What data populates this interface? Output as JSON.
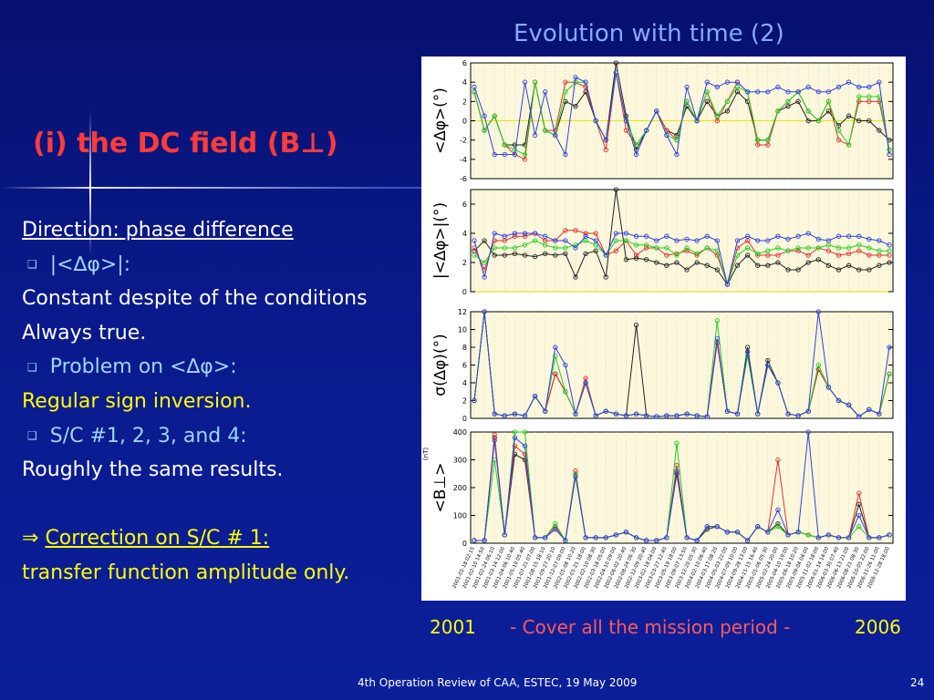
{
  "slide": {
    "title": "Evolution with time (2)",
    "section_title": "(i) the DC field (B⊥)",
    "footer": "4th Operation Review of CAA, ESTEC, 19 May 2009",
    "page_number": "24"
  },
  "body": {
    "heading": "Direction: phase difference",
    "bullet_1": "|<∆φ>|:",
    "line_1a": "Constant  despite of the conditions",
    "line_1b": "Always true.",
    "bullet_2": "Problem on <∆φ>:",
    "line_2": "Regular sign inversion.",
    "bullet_3": "S/C #1, 2, 3, and 4:",
    "line_3": "Roughly the same results.",
    "arrow": "⇒",
    "conclusion": "Correction on S/C # 1:",
    "line_4": "transfer function amplitude only."
  },
  "timeline": {
    "start_year": "2001",
    "caption": "- Cover all the mission period -",
    "end_year": "2006"
  },
  "colors": {
    "background": "#0a1a8c",
    "title": "#88aaff",
    "section_title": "#ff3b3b",
    "highlight": "#ffff00",
    "text": "#ffffff",
    "bullet_text": "#9fd4ff",
    "plot_bg": "#fdf8dc",
    "reference_line": "#e8e030"
  },
  "chart_data": {
    "type": "line",
    "x": [
      "2001-01-18 02:15",
      "2001-02-10 14:50",
      "2001-02-24 06:10",
      "2001-03-14 12:00",
      "2001-04-06 10:40",
      "2001-05-19 05:40",
      "2001-07-21 07:00",
      "2001-08-15 18:10",
      "2001-09-27 20:10",
      "2001-12-07 09:00",
      "2002-01-08 10:20",
      "2002-01-21 18:00",
      "2002-02-10 08:30",
      "2002-03-18 05:00",
      "2002-04-10 09:00",
      "2002-06-02 20:40",
      "2002-08-24 06:30",
      "2002-12-09 20:40",
      "2003-02-18 04:00",
      "2003-03-27 12:40",
      "2003-05-19 18:00",
      "2003-09-07 13:50",
      "2003-12-20 05:30",
      "2004-02-10 06:40",
      "2004-03-17 08:20",
      "2004-05-03 22:00",
      "2004-07-09 10:00",
      "2004-09-28 13:00",
      "2004-11-15 16:40",
      "2005-01-06 05:30",
      "2005-02-24 20:00",
      "2005-04-10 19:00",
      "2005-06-18 10:20",
      "2005-09-04 04:00",
      "2005-11-02 18:00",
      "2006-01-14 14:00",
      "2006-03-30 07:40",
      "2006-06-13 21:00",
      "2006-08-21 08:30",
      "2006-10-05 22:00",
      "2006-11-26 11:00",
      "2006-12-28 18:00"
    ],
    "series_colors": [
      "#202020",
      "#e03030",
      "#20d020",
      "#3040e0"
    ],
    "panels": [
      {
        "ylabel": "<∆φ>(°)",
        "ylim": [
          -6,
          6
        ],
        "yticks": [
          -6,
          -4,
          -2,
          0,
          2,
          4,
          6
        ],
        "reference": 0,
        "series": [
          {
            "values": [
              3,
              -1,
              0.5,
              -2.5,
              -2.5,
              -2.5,
              4,
              -1,
              -1.5,
              2,
              1.5,
              3,
              0,
              -2,
              6,
              0.5,
              -3,
              -1,
              1,
              -1,
              -1.5,
              1.5,
              0,
              2,
              0.5,
              1,
              3,
              2,
              -2,
              -2,
              1,
              1.5,
              2,
              0,
              0,
              1,
              -0.5,
              0.5,
              0,
              0,
              -1,
              -2
            ]
          },
          {
            "values": [
              3,
              -1,
              0.5,
              -2.5,
              -3.5,
              -4,
              4,
              -1,
              -1,
              4,
              4,
              3.5,
              0,
              -3,
              5,
              -1,
              -2.5,
              -1,
              1,
              -1,
              -2,
              2,
              0,
              3,
              0,
              2,
              4,
              3,
              -2.5,
              -2.5,
              1,
              2,
              3,
              1,
              0,
              2,
              -2,
              -2.5,
              2,
              2,
              2,
              -3
            ]
          },
          {
            "values": [
              3,
              -1,
              0.5,
              -2.5,
              -3,
              -3.5,
              4,
              -1,
              -1.5,
              3,
              4,
              4,
              0,
              -2,
              5,
              0,
              -2.5,
              -1,
              1,
              -1.5,
              -2,
              2,
              0,
              3,
              0.5,
              2,
              3.5,
              3,
              -2,
              -2,
              1,
              2,
              3,
              1,
              0,
              2,
              -1,
              -2.5,
              2.5,
              2.5,
              2.5,
              -3
            ]
          },
          {
            "values": [
              3.5,
              0.5,
              -3.5,
              -3.5,
              -3.5,
              4,
              -1.5,
              3,
              -1.5,
              -3.5,
              4.5,
              4,
              0,
              -2,
              5,
              0,
              -3.5,
              -1,
              1,
              -1.5,
              -3.5,
              3.5,
              0,
              4,
              3.5,
              4,
              4,
              3,
              3,
              3,
              3.5,
              3,
              3,
              3.5,
              3,
              3,
              3.5,
              4,
              3.5,
              3.5,
              4,
              -3.5
            ]
          }
        ]
      },
      {
        "ylabel": "|<∆φ>|(°)",
        "ylim": [
          0,
          7
        ],
        "yticks": [
          0,
          2,
          4,
          6
        ],
        "reference": 0,
        "series": [
          {
            "values": [
              2.8,
              3.5,
              2.5,
              2.5,
              2.6,
              2.5,
              2.4,
              2.6,
              2.5,
              2.6,
              1.0,
              2.6,
              2.8,
              1.0,
              7.0,
              2.2,
              2.3,
              2.2,
              2.0,
              1.8,
              2.0,
              1.5,
              2.0,
              1.8,
              1.5,
              0.5,
              1.8,
              2.5,
              1.8,
              1.8,
              2.0,
              1.5,
              1.5,
              2.0,
              2.2,
              1.8,
              1.5,
              1.8,
              1.5,
              1.5,
              1.8,
              2.0
            ]
          },
          {
            "values": [
              3.0,
              1.5,
              3.5,
              3.5,
              3.8,
              3.8,
              4.0,
              3.5,
              3.5,
              4.2,
              4.2,
              4.0,
              4.0,
              2.5,
              2.8,
              3.5,
              2.5,
              3.0,
              3.0,
              2.5,
              2.6,
              2.8,
              2.5,
              3.0,
              2.5,
              0.5,
              3.0,
              3.5,
              2.5,
              2.5,
              2.5,
              2.8,
              2.8,
              2.5,
              3.0,
              2.8,
              2.5,
              2.6,
              2.8,
              2.5,
              2.5,
              2.5
            ]
          },
          {
            "values": [
              2.5,
              2.0,
              3.0,
              3.0,
              3.0,
              3.2,
              3.5,
              3.2,
              3.0,
              3.0,
              3.2,
              3.5,
              3.2,
              2.5,
              3.5,
              3.5,
              3.2,
              3.2,
              3.0,
              3.0,
              2.5,
              3.0,
              2.6,
              3.0,
              2.8,
              0.5,
              2.5,
              3.0,
              2.6,
              2.8,
              3.0,
              2.8,
              3.0,
              3.0,
              3.0,
              3.2,
              3.0,
              3.0,
              3.2,
              3.0,
              2.8,
              2.8
            ]
          },
          {
            "values": [
              3.5,
              1.0,
              4.0,
              3.8,
              4.0,
              4.0,
              4.0,
              3.8,
              3.5,
              3.5,
              3.0,
              3.8,
              3.5,
              2.5,
              4.0,
              4.0,
              3.8,
              3.8,
              3.5,
              3.8,
              3.5,
              3.6,
              3.5,
              3.8,
              3.5,
              0.5,
              3.5,
              3.8,
              3.5,
              3.5,
              3.8,
              3.6,
              3.8,
              4.0,
              3.6,
              3.5,
              3.8,
              3.8,
              3.8,
              3.6,
              3.5,
              3.2
            ]
          }
        ]
      },
      {
        "ylabel": "σ(∆φ)(°)",
        "ylim": [
          0,
          12
        ],
        "yticks": [
          0,
          2,
          4,
          6,
          8,
          10,
          12
        ],
        "series": [
          {
            "values": [
              2,
              12,
              0.5,
              0.3,
              0.5,
              0.3,
              2.5,
              0.8,
              5,
              3,
              0.5,
              4,
              0.3,
              0.8,
              0.5,
              0.3,
              10.5,
              0.3,
              0.2,
              0.3,
              0.3,
              0.5,
              0.3,
              0.2,
              8.5,
              0.8,
              0.5,
              8,
              0.5,
              6.5,
              4,
              0.5,
              0.3,
              0.8,
              5.5,
              3.5,
              2,
              1.5,
              0.2,
              1,
              0.5,
              5
            ]
          },
          {
            "values": [
              2,
              12,
              0.5,
              0.3,
              0.5,
              0.3,
              2.5,
              0.8,
              5,
              3,
              0.5,
              4.5,
              0.3,
              0.8,
              0.5,
              0.3,
              0.5,
              0.3,
              0.2,
              0.3,
              0.3,
              0.5,
              0.3,
              0.2,
              8.5,
              0.8,
              0.5,
              7.5,
              0.5,
              6,
              4,
              0.5,
              0.3,
              0.8,
              5.5,
              3.5,
              2,
              1.5,
              0.2,
              1,
              0.5,
              5
            ]
          },
          {
            "values": [
              2,
              12,
              0.5,
              0.3,
              0.5,
              0.3,
              2.5,
              0.8,
              7,
              3,
              0.5,
              4,
              0.3,
              0.8,
              0.5,
              0.3,
              0.5,
              0.3,
              0.2,
              0.3,
              0.3,
              0.5,
              0.3,
              0.2,
              11,
              0.8,
              0.5,
              7,
              0.5,
              6,
              4,
              0.5,
              0.3,
              0.8,
              6,
              3.5,
              2,
              1.5,
              0.2,
              1,
              0.5,
              5
            ]
          },
          {
            "values": [
              2,
              12,
              0.5,
              0.3,
              0.5,
              0.3,
              2.5,
              0.8,
              8,
              6,
              0.5,
              4,
              0.3,
              0.8,
              0.5,
              0.3,
              0.5,
              0.3,
              0.2,
              0.3,
              0.3,
              0.5,
              0.3,
              0.2,
              9,
              0.8,
              0.5,
              7.5,
              0.5,
              6,
              4,
              0.5,
              0.3,
              0.8,
              12,
              3.5,
              2,
              1.5,
              0.2,
              1,
              0.5,
              8
            ]
          }
        ]
      },
      {
        "ylabel": "<B⊥>",
        "unit": "(nT)",
        "ylim": [
          0,
          400
        ],
        "yticks": [
          0,
          100,
          200,
          300,
          400
        ],
        "series": [
          {
            "values": [
              10,
              10,
              380,
              30,
              320,
              300,
              20,
              20,
              60,
              10,
              250,
              20,
              20,
              20,
              30,
              40,
              20,
              10,
              10,
              20,
              250,
              20,
              10,
              50,
              60,
              40,
              40,
              10,
              60,
              40,
              70,
              30,
              40,
              30,
              20,
              30,
              20,
              20,
              140,
              20,
              20,
              30
            ]
          },
          {
            "values": [
              10,
              10,
              390,
              30,
              350,
              320,
              20,
              20,
              60,
              10,
              260,
              20,
              20,
              20,
              30,
              40,
              20,
              10,
              10,
              20,
              280,
              20,
              10,
              60,
              60,
              40,
              40,
              10,
              60,
              40,
              300,
              30,
              40,
              30,
              20,
              30,
              20,
              20,
              180,
              20,
              20,
              30
            ]
          },
          {
            "values": [
              10,
              10,
              300,
              30,
              400,
              400,
              20,
              20,
              70,
              10,
              250,
              20,
              20,
              20,
              30,
              40,
              20,
              10,
              10,
              20,
              360,
              20,
              10,
              60,
              60,
              40,
              40,
              10,
              60,
              40,
              60,
              30,
              40,
              30,
              20,
              30,
              20,
              20,
              60,
              20,
              20,
              30
            ]
          },
          {
            "values": [
              10,
              10,
              370,
              30,
              380,
              350,
              20,
              20,
              50,
              10,
              240,
              20,
              20,
              20,
              30,
              40,
              20,
              10,
              10,
              20,
              260,
              20,
              10,
              60,
              60,
              40,
              40,
              10,
              60,
              40,
              120,
              30,
              40,
              400,
              20,
              30,
              20,
              20,
              100,
              20,
              20,
              30
            ]
          }
        ]
      }
    ]
  }
}
